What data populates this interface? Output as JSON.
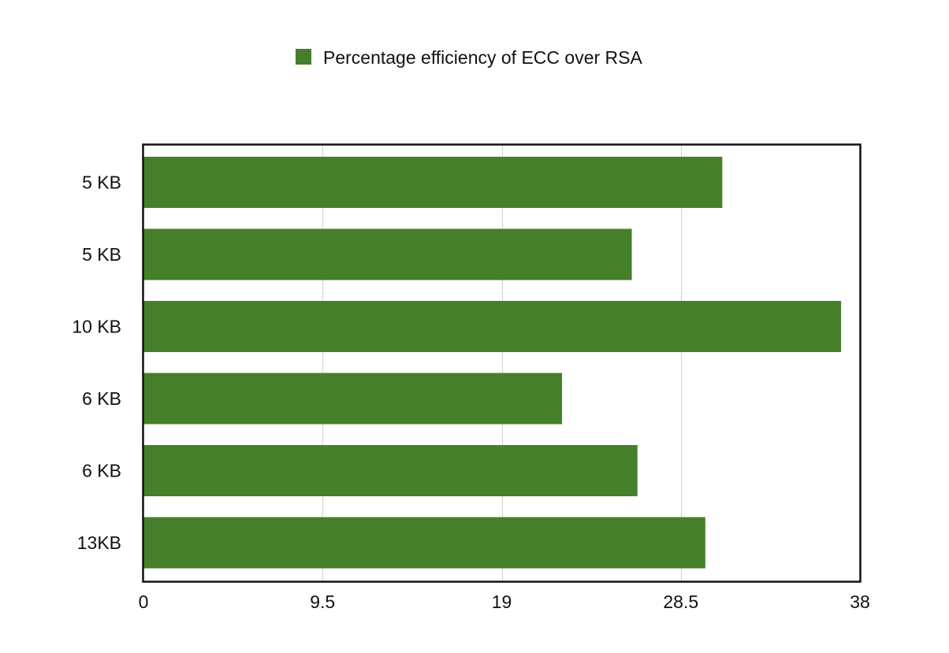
{
  "chart_data": {
    "type": "bar",
    "orientation": "horizontal",
    "categories": [
      "5 KB",
      "5 KB",
      "10 KB",
      "6 KB",
      "6 KB",
      "13KB"
    ],
    "series": [
      {
        "name": "Percentage efficiency of ECC over RSA",
        "values": [
          30.7,
          25.9,
          37.0,
          22.2,
          26.2,
          29.8
        ],
        "color": "#467f29"
      }
    ],
    "xlim": [
      0,
      38
    ],
    "xticks": [
      "0",
      "9.5",
      "19",
      "28.5",
      "38"
    ],
    "xtick_values": [
      0,
      9.5,
      19,
      28.5,
      38
    ],
    "legend_position": "top-center",
    "grid": "vertical"
  }
}
